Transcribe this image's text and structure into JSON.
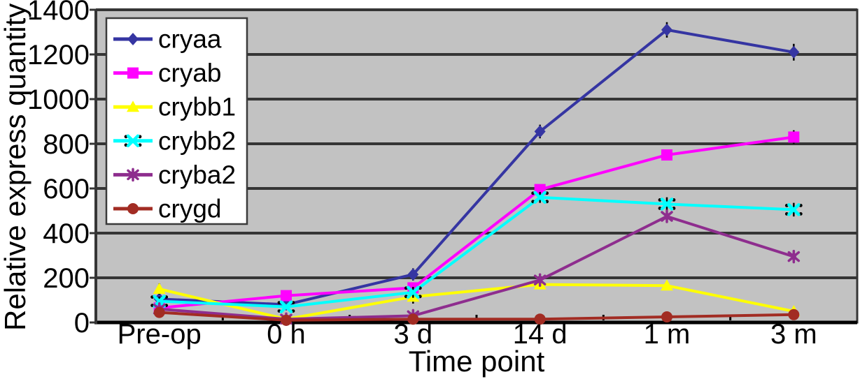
{
  "chart_data": {
    "type": "line",
    "title": "",
    "xlabel": "Time point",
    "ylabel": "Relative express quantity",
    "categories": [
      "Pre-op",
      "0 h",
      "3 d",
      "14 d",
      "1 m",
      "3 m"
    ],
    "ylim": [
      0,
      1400
    ],
    "yticks": [
      0,
      200,
      400,
      600,
      800,
      1000,
      1200,
      1400
    ],
    "grid": true,
    "legend_position": "upper-left-inside",
    "colors": {
      "plot_background": "#c2c2c2",
      "grid_line": "#353535",
      "axis_line": "#000000",
      "legend_background": "#ffffff",
      "legend_border": "#3a3a3a",
      "error_bar": "#000000"
    },
    "series": [
      {
        "name": "cryaa",
        "color": "#3535A2",
        "marker": "diamond",
        "values": [
          105,
          80,
          215,
          855,
          1310,
          1210
        ],
        "errors": [
          12,
          8,
          15,
          18,
          22,
          25
        ]
      },
      {
        "name": "cryab",
        "color": "#FF00FF",
        "marker": "square",
        "values": [
          65,
          120,
          155,
          595,
          750,
          830
        ],
        "errors": [
          0,
          0,
          12,
          0,
          0,
          18
        ]
      },
      {
        "name": "crybb1",
        "color": "#FFFF00",
        "marker": "triangle",
        "values": [
          150,
          15,
          115,
          170,
          165,
          50
        ],
        "errors": [
          12,
          0,
          18,
          8,
          8,
          6
        ]
      },
      {
        "name": "crybb2",
        "color": "#00FFFF",
        "marker": "x",
        "values": [
          95,
          70,
          135,
          560,
          530,
          505
        ],
        "errors": [
          8,
          0,
          12,
          12,
          18,
          18
        ]
      },
      {
        "name": "cryba2",
        "color": "#8E2D8E",
        "marker": "star",
        "values": [
          60,
          15,
          30,
          190,
          475,
          295
        ],
        "errors": [
          0,
          0,
          0,
          8,
          12,
          10
        ]
      },
      {
        "name": "crygd",
        "color": "#A22C23",
        "marker": "circle",
        "values": [
          45,
          10,
          15,
          15,
          25,
          35
        ],
        "errors": [
          0,
          0,
          0,
          0,
          0,
          0
        ]
      }
    ]
  }
}
